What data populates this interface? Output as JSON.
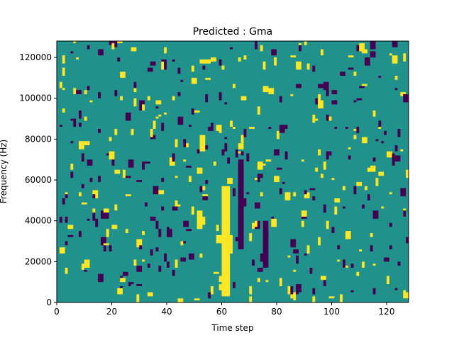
{
  "chart_data": {
    "type": "heatmap",
    "title": "Predicted : Gma",
    "xlabel": "Time step",
    "ylabel": "Frequency (Hz)",
    "xlim": [
      0,
      128
    ],
    "ylim": [
      0,
      128000
    ],
    "x_ticks": [
      0,
      20,
      40,
      60,
      80,
      100,
      120
    ],
    "y_ticks": [
      0,
      20000,
      40000,
      60000,
      80000,
      100000,
      120000
    ],
    "y_tick_labels": [
      "0",
      "20000",
      "40000",
      "60000",
      "80000",
      "100000",
      "120000"
    ],
    "grid": false,
    "legend": "none",
    "colormap": {
      "background": "#21918c",
      "low": "#440154",
      "high": "#fde725"
    },
    "time_bins": 128,
    "freq_bins": 128,
    "bands": [
      {
        "x": [
          60,
          63
        ],
        "y": [
          3000,
          57000
        ],
        "level": "high"
      },
      {
        "x": [
          60,
          64
        ],
        "y": [
          24000,
          33000
        ],
        "level": "high"
      },
      {
        "x": [
          51,
          53
        ],
        "y": [
          36000,
          45000
        ],
        "level": "high"
      },
      {
        "x": [
          52,
          54
        ],
        "y": [
          74000,
          82000
        ],
        "level": "high"
      },
      {
        "x": [
          66,
          68
        ],
        "y": [
          26000,
          70000
        ],
        "level": "low"
      },
      {
        "x": [
          75,
          77
        ],
        "y": [
          17000,
          40000
        ],
        "level": "low"
      }
    ]
  }
}
